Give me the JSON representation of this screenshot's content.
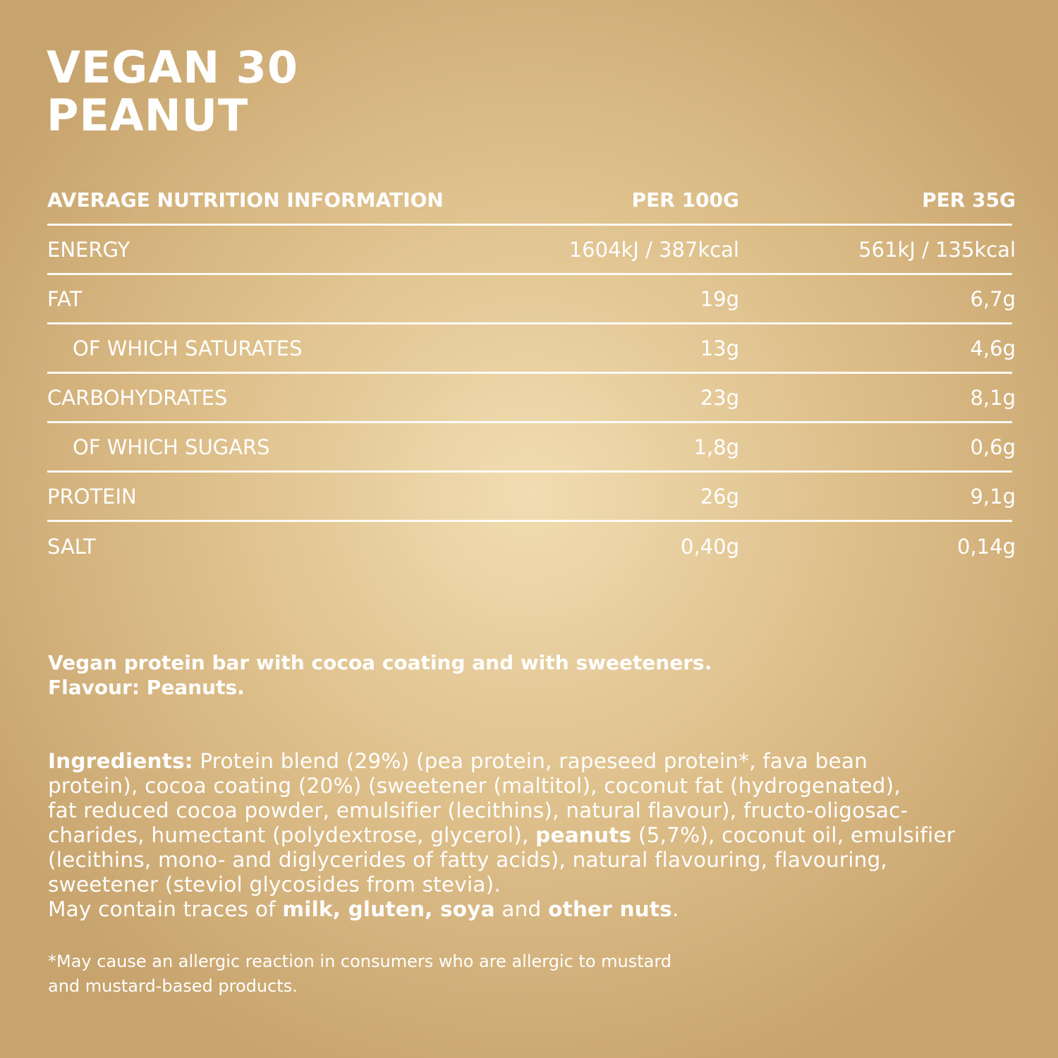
{
  "title": [
    "VEGAN 30",
    "PEANUT"
  ],
  "table": {
    "header": [
      "AVERAGE NUTRITION INFORMATION",
      "PER 100G",
      "PER 35G"
    ],
    "rows": [
      [
        "ENERGY",
        "1604kJ / 387kcal",
        "561kJ / 135kcal"
      ],
      [
        "FAT",
        "19g",
        "6,7g"
      ],
      [
        "OF WHICH SATURATES",
        "13g",
        "4,6g"
      ],
      [
        "CARBOHYDRATES",
        "23g",
        "8,1g"
      ],
      [
        "OF WHICH SUGARS",
        "1,8g",
        "0,6g"
      ],
      [
        "PROTEIN",
        "26g",
        "9,1g"
      ],
      [
        "SALT",
        "0,40g",
        "0,14g"
      ]
    ]
  },
  "description": [
    "Vegan protein bar with cocoa coating and with sweeteners.",
    "Flavour: Peanuts."
  ],
  "ingredients": [
    [
      "Ingredients:",
      " Protein blend (29%) (pea protein, rapeseed protein*, fava bean"
    ],
    [
      "protein), cocoa coating (20%) (sweetener (maltitol), coconut fat (hydrogenated),"
    ],
    [
      "fat reduced cocoa powder, emulsifier (lecithins), natural flavour), fructo-oligosac-"
    ],
    [
      "charides, humectant (polydextrose, glycerol), ",
      "peanuts",
      " (5,7%), coconut oil, emulsifier"
    ],
    [
      "(lecithins, mono- and diglycerides of fatty acids), natural flavouring, flavouring,"
    ],
    [
      "sweetener (steviol glycosides from stevia)."
    ],
    [
      "May contain traces of ",
      "milk, gluten, soya",
      " and ",
      "other nuts",
      "."
    ]
  ],
  "footnote": [
    "*May cause an allergic reaction in consumers who are allergic to mustard",
    "and mustard-based products."
  ]
}
